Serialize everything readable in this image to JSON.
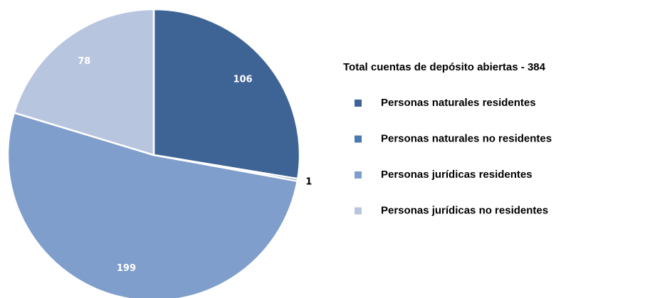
{
  "chart_data": {
    "type": "pie",
    "legend_title": "Total cuentas de depósito abiertas  -  384",
    "categories": [
      "Personas naturales residentes",
      "Personas naturales no residentes",
      "Personas jurídicas residentes",
      "Personas jurídicas no residentes"
    ],
    "values": [
      106,
      1,
      199,
      78
    ],
    "colors": [
      "#3e6496",
      "#4a78b2",
      "#7f9ecb",
      "#b8c5df"
    ],
    "legend": "right"
  }
}
